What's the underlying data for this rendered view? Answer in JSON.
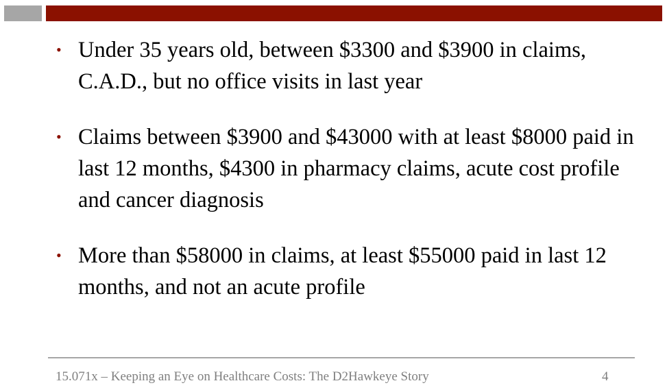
{
  "colors": {
    "accent_red": "#8b1100",
    "accent_gray": "#a6a6a6",
    "footer_text": "#7f7f7f"
  },
  "bullets": [
    {
      "marker": "•",
      "text": "Under 35 years old, between $3300 and $3900 in claims, C.A.D., but no office visits in last year"
    },
    {
      "marker": "•",
      "text": "Claims between $3900 and $43000 with at least $8000 paid in last 12 months, $4300 in pharmacy claims, acute cost profile and cancer diagnosis"
    },
    {
      "marker": "•",
      "text": "More than $58000 in claims, at least $55000 paid in last 12 months, and not an acute profile"
    }
  ],
  "footer": {
    "text": "15.071x – Keeping an Eye on Healthcare Costs: The D2Hawkeye Story",
    "page_number": "4"
  }
}
